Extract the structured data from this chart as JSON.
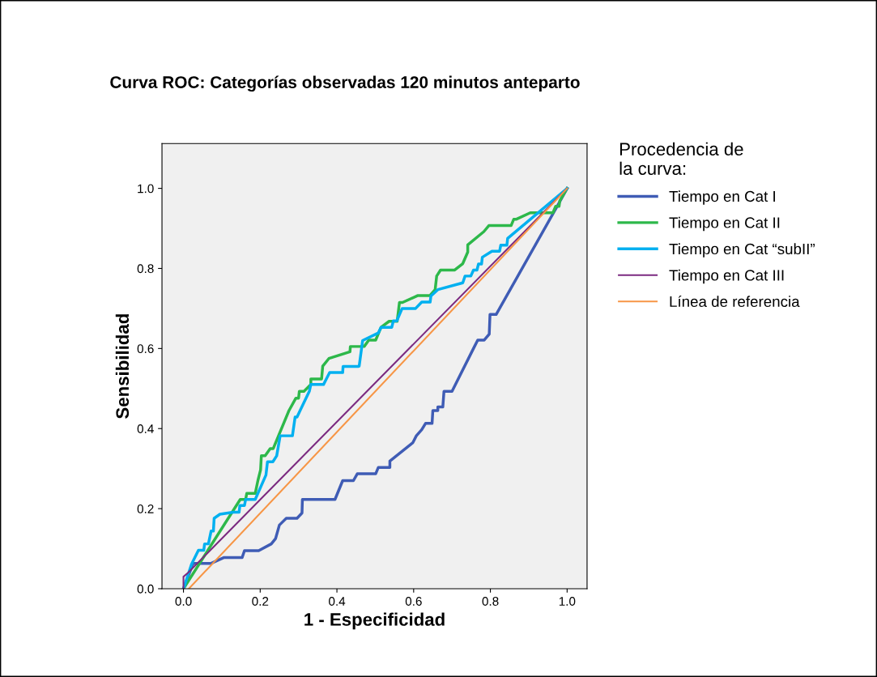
{
  "chart_data": {
    "type": "line",
    "title": "Curva ROC: Categorías observadas 120 minutos anteparto",
    "xlabel": "1 - Especificidad",
    "ylabel": "Sensibilidad",
    "legend_title": "Procedencia de\nla curva:",
    "legend": "right",
    "grid": false,
    "marker": "none",
    "line_style": "solid",
    "xlim": [
      -0.056,
      1.052
    ],
    "ylim": [
      0,
      1.112
    ],
    "xticks": [
      {
        "value": 0,
        "label": "0.0"
      },
      {
        "value": 0.2,
        "label": "0.2"
      },
      {
        "value": 0.4,
        "label": "0.4"
      },
      {
        "value": 0.6,
        "label": "0.6"
      },
      {
        "value": 0.8,
        "label": "0.8"
      },
      {
        "value": 1,
        "label": "1.0"
      }
    ],
    "yticks": [
      {
        "value": 0,
        "label": "0.0"
      },
      {
        "value": 0.2,
        "label": "0.2"
      },
      {
        "value": 0.4,
        "label": "0.4"
      },
      {
        "value": 0.6,
        "label": "0.6"
      },
      {
        "value": 0.8,
        "label": "0.8"
      },
      {
        "value": 1,
        "label": "1.0"
      }
    ],
    "series": [
      {
        "name": "Tiempo en Cat I",
        "color": "#3f5cb5",
        "x": [
          0,
          0.025,
          0.071,
          0.106,
          0.153,
          0.159,
          0.196,
          0.229,
          0.24,
          0.25,
          0.268,
          0.296,
          0.309,
          0.31,
          0.395,
          0.415,
          0.443,
          0.453,
          0.501,
          0.508,
          0.538,
          0.538,
          0.598,
          0.607,
          0.621,
          0.631,
          0.648,
          0.65,
          0.663,
          0.663,
          0.676,
          0.679,
          0.7,
          0.758,
          0.767,
          0.784,
          0.797,
          0.799,
          0.815,
          0.981,
          1
        ],
        "values": [
          0,
          0.063,
          0.063,
          0.078,
          0.078,
          0.095,
          0.095,
          0.112,
          0.125,
          0.159,
          0.176,
          0.176,
          0.189,
          0.223,
          0.223,
          0.27,
          0.27,
          0.287,
          0.287,
          0.303,
          0.303,
          0.319,
          0.365,
          0.382,
          0.397,
          0.413,
          0.413,
          0.445,
          0.445,
          0.454,
          0.454,
          0.493,
          0.493,
          0.604,
          0.621,
          0.621,
          0.636,
          0.685,
          0.685,
          0.967,
          1
        ]
      },
      {
        "name": "Tiempo en Cat II",
        "color": "#2db84a",
        "x": [
          0,
          0.148,
          0.162,
          0.165,
          0.187,
          0.194,
          0.201,
          0.203,
          0.213,
          0.226,
          0.234,
          0.275,
          0.293,
          0.3,
          0.302,
          0.314,
          0.332,
          0.332,
          0.36,
          0.363,
          0.379,
          0.434,
          0.435,
          0.471,
          0.483,
          0.501,
          0.515,
          0.536,
          0.557,
          0.563,
          0.571,
          0.61,
          0.642,
          0.656,
          0.66,
          0.67,
          0.707,
          0.728,
          0.741,
          0.741,
          0.783,
          0.796,
          0.854,
          0.861,
          0.868,
          0.904,
          0.963,
          0.97,
          0.979,
          0.981,
          1
        ],
        "values": [
          0,
          0.223,
          0.223,
          0.238,
          0.238,
          0.27,
          0.297,
          0.332,
          0.332,
          0.35,
          0.35,
          0.445,
          0.476,
          0.476,
          0.493,
          0.493,
          0.51,
          0.524,
          0.524,
          0.556,
          0.575,
          0.592,
          0.605,
          0.605,
          0.621,
          0.621,
          0.653,
          0.668,
          0.668,
          0.715,
          0.715,
          0.732,
          0.732,
          0.747,
          0.781,
          0.796,
          0.796,
          0.812,
          0.841,
          0.859,
          0.892,
          0.907,
          0.907,
          0.923,
          0.923,
          0.939,
          0.939,
          0.955,
          0.955,
          0.969,
          1
        ]
      },
      {
        "name": "Tiempo en Cat “subII”",
        "color": "#00b0f0",
        "x": [
          0,
          0.021,
          0.039,
          0.053,
          0.055,
          0.065,
          0.072,
          0.078,
          0.08,
          0.095,
          0.13,
          0.145,
          0.147,
          0.159,
          0.162,
          0.187,
          0.215,
          0.219,
          0.233,
          0.243,
          0.252,
          0.284,
          0.291,
          0.296,
          0.328,
          0.332,
          0.365,
          0.381,
          0.415,
          0.416,
          0.455,
          0.458,
          0.467,
          0.508,
          0.515,
          0.543,
          0.547,
          0.556,
          0.57,
          0.605,
          0.621,
          0.643,
          0.645,
          0.663,
          0.728,
          0.734,
          0.749,
          0.756,
          0.765,
          0.769,
          0.777,
          0.779,
          0.804,
          0.824,
          0.827,
          0.843,
          0.845,
          1
        ],
        "values": [
          0,
          0.061,
          0.096,
          0.096,
          0.112,
          0.112,
          0.144,
          0.144,
          0.176,
          0.186,
          0.191,
          0.191,
          0.208,
          0.208,
          0.223,
          0.223,
          0.284,
          0.317,
          0.317,
          0.332,
          0.382,
          0.382,
          0.429,
          0.429,
          0.493,
          0.51,
          0.51,
          0.54,
          0.54,
          0.555,
          0.555,
          0.556,
          0.62,
          0.639,
          0.653,
          0.653,
          0.669,
          0.669,
          0.7,
          0.7,
          0.716,
          0.716,
          0.731,
          0.747,
          0.764,
          0.781,
          0.781,
          0.796,
          0.796,
          0.811,
          0.811,
          0.828,
          0.843,
          0.843,
          0.858,
          0.858,
          0.875,
          1
        ]
      },
      {
        "name": "Tiempo en Cat III",
        "color": "#7b2a80",
        "x": [
          0,
          0,
          0.012,
          1
        ],
        "values": [
          0,
          0.03,
          0.04,
          1
        ]
      },
      {
        "name": "Línea de referencia",
        "color": "#f79646",
        "x": [
          0.014,
          1
        ],
        "values": [
          0,
          1
        ]
      }
    ]
  }
}
